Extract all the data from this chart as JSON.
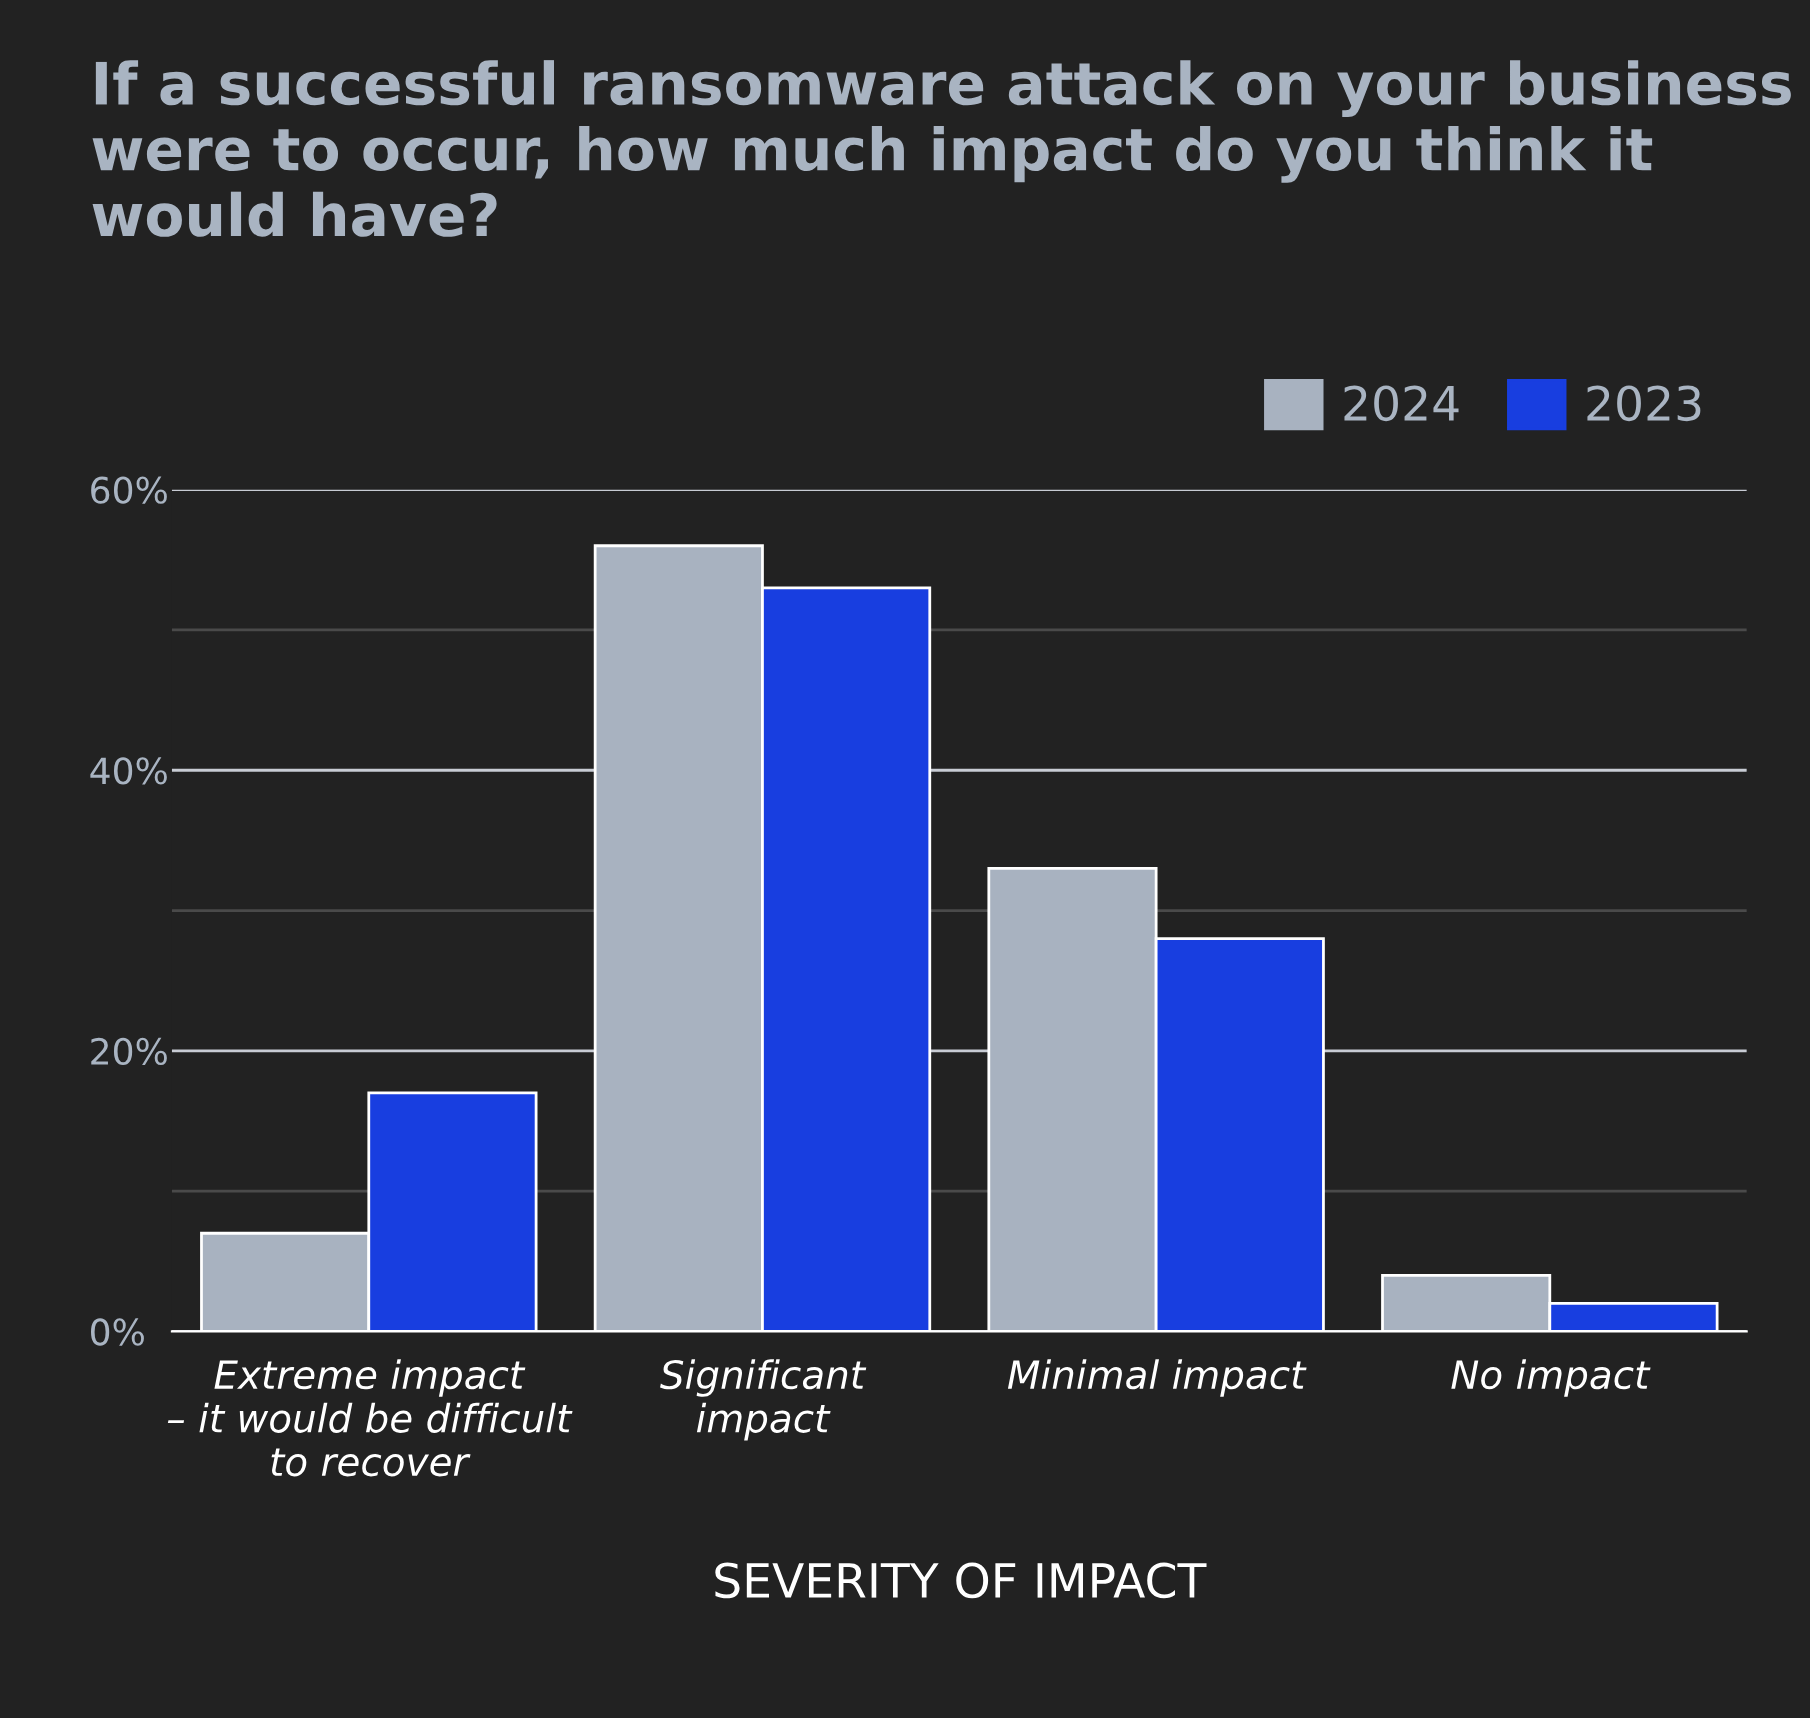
{
  "chart_data": {
    "type": "bar",
    "title": "If a successful ransomware attack on your business were to occur, how much impact do you think it would have?",
    "xlabel": "SEVERITY OF IMPACT",
    "categories": [
      "Extreme impact\n– it would be difficult\nto recover",
      "Significant\nimpact",
      "Minimal impact",
      "No impact"
    ],
    "series": [
      {
        "name": "2024",
        "color": "#a8b2c0",
        "values": [
          7,
          56,
          33,
          4
        ]
      },
      {
        "name": "2023",
        "color": "#183ee0",
        "values": [
          17,
          53,
          28,
          2
        ]
      }
    ],
    "ylim": [
      0,
      60
    ],
    "yticks": [
      {
        "value": 0,
        "label": "0%"
      },
      {
        "value": 10,
        "label": null
      },
      {
        "value": 20,
        "label": "20%"
      },
      {
        "value": 30,
        "label": null
      },
      {
        "value": 40,
        "label": "40%"
      },
      {
        "value": 50,
        "label": null
      },
      {
        "value": 60,
        "label": "60%"
      }
    ],
    "grid": "y",
    "legend": "top right"
  }
}
